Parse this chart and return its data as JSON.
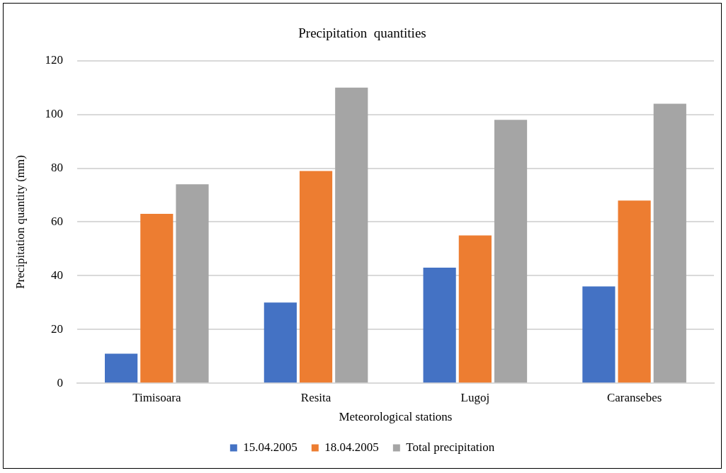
{
  "chart_data": {
    "type": "bar",
    "title": "Precipitation  quantities",
    "xlabel": "Meteorological stations",
    "ylabel": "Precipitation quantity (mm)",
    "categories": [
      "Timisoara",
      "Resita",
      "Lugoj",
      "Caransebes"
    ],
    "series": [
      {
        "name": "15.04.2005",
        "color": "#4472c4",
        "values": [
          11,
          30,
          43,
          36
        ]
      },
      {
        "name": "18.04.2005",
        "color": "#ed7d31",
        "values": [
          63,
          79,
          55,
          68
        ]
      },
      {
        "name": "Total precipitation",
        "color": "#a5a5a5",
        "values": [
          74,
          110,
          98,
          104
        ]
      }
    ],
    "ylim": [
      0,
      120
    ],
    "yticks": [
      0,
      20,
      40,
      60,
      80,
      100,
      120
    ],
    "grid": "y",
    "legend": "bottom"
  }
}
